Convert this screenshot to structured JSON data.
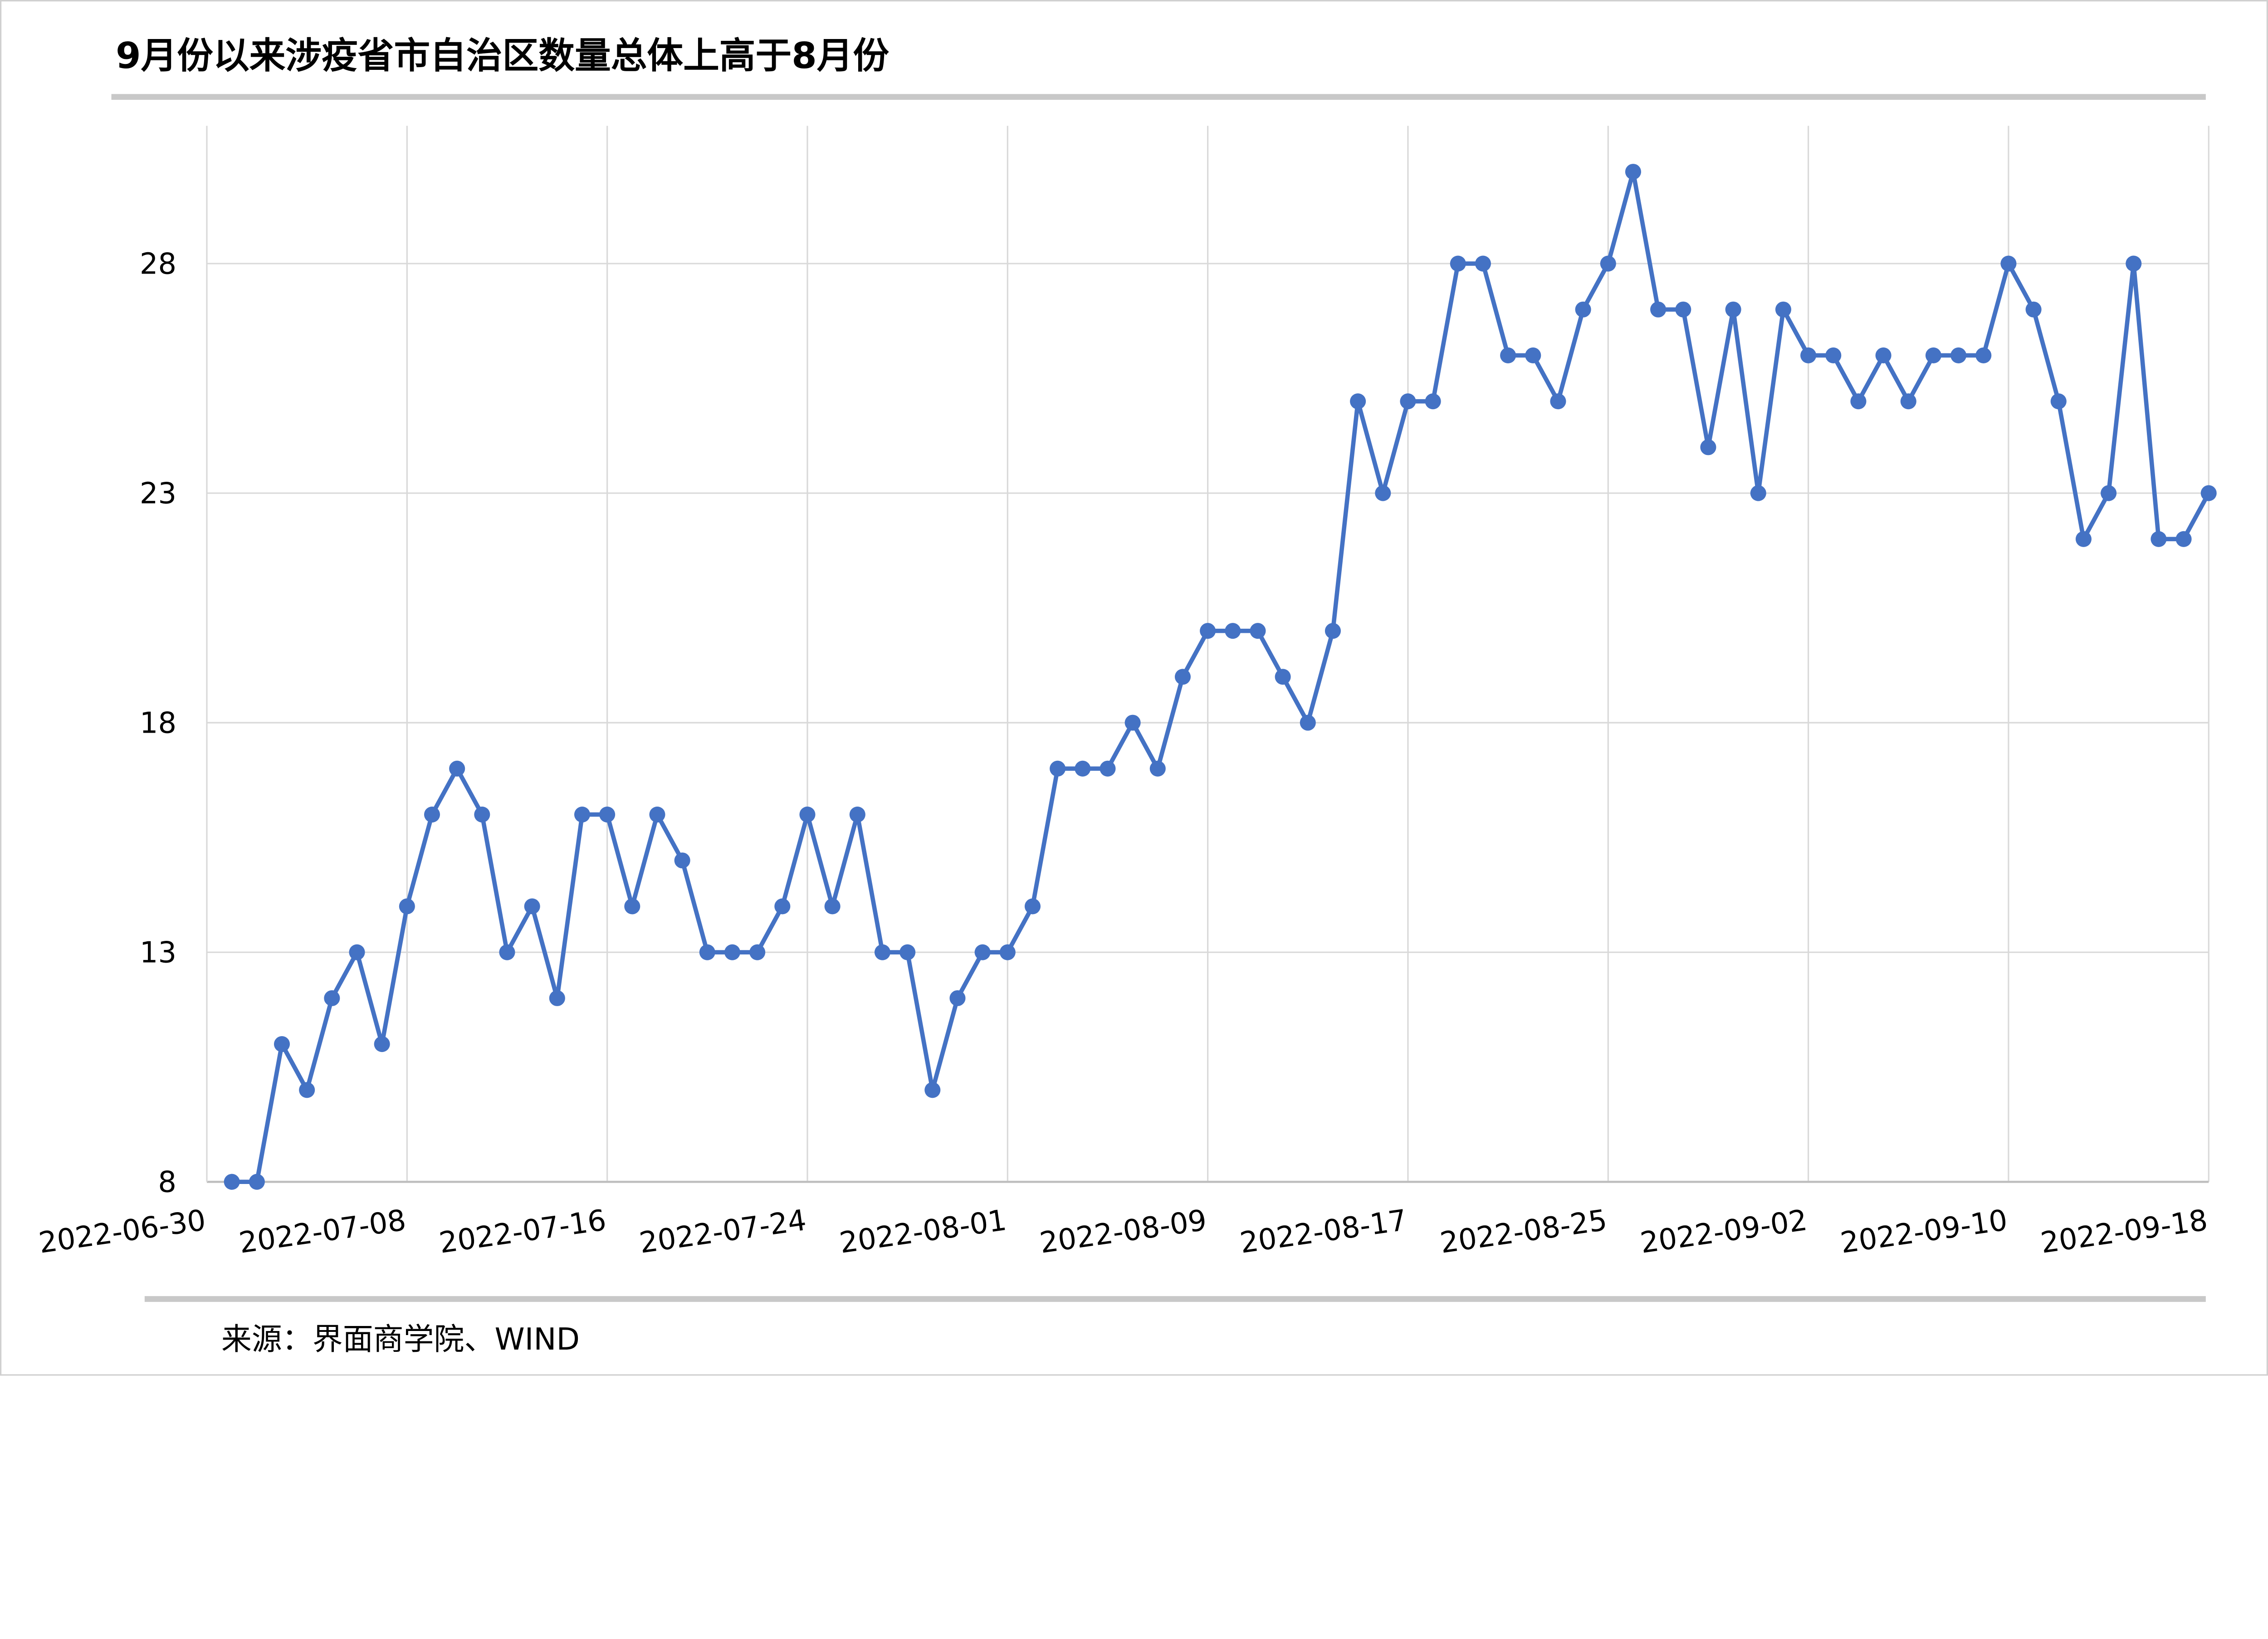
{
  "title": "9月份以来涉疫省市自治区数量总体上高于8月份",
  "source": "来源：界面商学院、WIND",
  "colors": {
    "series": "#4472C4",
    "grid": "#D9D9D9",
    "rule": "#C8C8C8",
    "text": "#000000"
  },
  "chart_data": {
    "type": "line",
    "title": "9月份以来涉疫省市自治区数量总体上高于8月份",
    "xlabel": "",
    "ylabel": "",
    "ylim": [
      8,
      31
    ],
    "yticks": [
      8,
      13,
      18,
      23,
      28
    ],
    "xlim": [
      "2022-06-30",
      "2022-09-18"
    ],
    "xticks": [
      "2022-06-30",
      "2022-07-08",
      "2022-07-16",
      "2022-07-24",
      "2022-08-01",
      "2022-08-09",
      "2022-08-17",
      "2022-08-25",
      "2022-09-02",
      "2022-09-10",
      "2022-09-18"
    ],
    "grid": true,
    "markers": true,
    "legend": "none",
    "x": [
      "2022-07-01",
      "2022-07-02",
      "2022-07-03",
      "2022-07-04",
      "2022-07-05",
      "2022-07-06",
      "2022-07-07",
      "2022-07-08",
      "2022-07-09",
      "2022-07-10",
      "2022-07-11",
      "2022-07-12",
      "2022-07-13",
      "2022-07-14",
      "2022-07-15",
      "2022-07-16",
      "2022-07-17",
      "2022-07-18",
      "2022-07-19",
      "2022-07-20",
      "2022-07-21",
      "2022-07-22",
      "2022-07-23",
      "2022-07-24",
      "2022-07-25",
      "2022-07-26",
      "2022-07-27",
      "2022-07-28",
      "2022-07-29",
      "2022-07-30",
      "2022-07-31",
      "2022-08-01",
      "2022-08-02",
      "2022-08-03",
      "2022-08-04",
      "2022-08-05",
      "2022-08-06",
      "2022-08-07",
      "2022-08-08",
      "2022-08-09",
      "2022-08-10",
      "2022-08-11",
      "2022-08-12",
      "2022-08-13",
      "2022-08-14",
      "2022-08-15",
      "2022-08-16",
      "2022-08-17",
      "2022-08-18",
      "2022-08-19",
      "2022-08-20",
      "2022-08-21",
      "2022-08-22",
      "2022-08-23",
      "2022-08-24",
      "2022-08-25",
      "2022-08-26",
      "2022-08-27",
      "2022-08-28",
      "2022-08-29",
      "2022-08-30",
      "2022-08-31",
      "2022-09-01",
      "2022-09-02",
      "2022-09-03",
      "2022-09-04",
      "2022-09-05",
      "2022-09-06",
      "2022-09-07",
      "2022-09-08",
      "2022-09-09",
      "2022-09-10",
      "2022-09-11",
      "2022-09-12",
      "2022-09-13",
      "2022-09-14",
      "2022-09-15",
      "2022-09-16",
      "2022-09-17",
      "2022-09-18"
    ],
    "values": [
      8,
      8,
      11,
      10,
      12,
      13,
      11,
      14,
      16,
      17,
      16,
      13,
      14,
      12,
      16,
      16,
      14,
      16,
      15,
      13,
      13,
      13,
      14,
      16,
      14,
      16,
      13,
      13,
      10,
      12,
      13,
      13,
      14,
      17,
      17,
      17,
      18,
      17,
      19,
      20,
      20,
      20,
      19,
      18,
      20,
      25,
      23,
      25,
      25,
      28,
      28,
      26,
      26,
      25,
      27,
      28,
      30,
      27,
      27,
      24,
      27,
      23,
      27,
      26,
      26,
      25,
      26,
      25,
      26,
      26,
      26,
      28,
      27,
      25,
      22,
      23,
      28,
      22,
      22,
      23
    ]
  }
}
